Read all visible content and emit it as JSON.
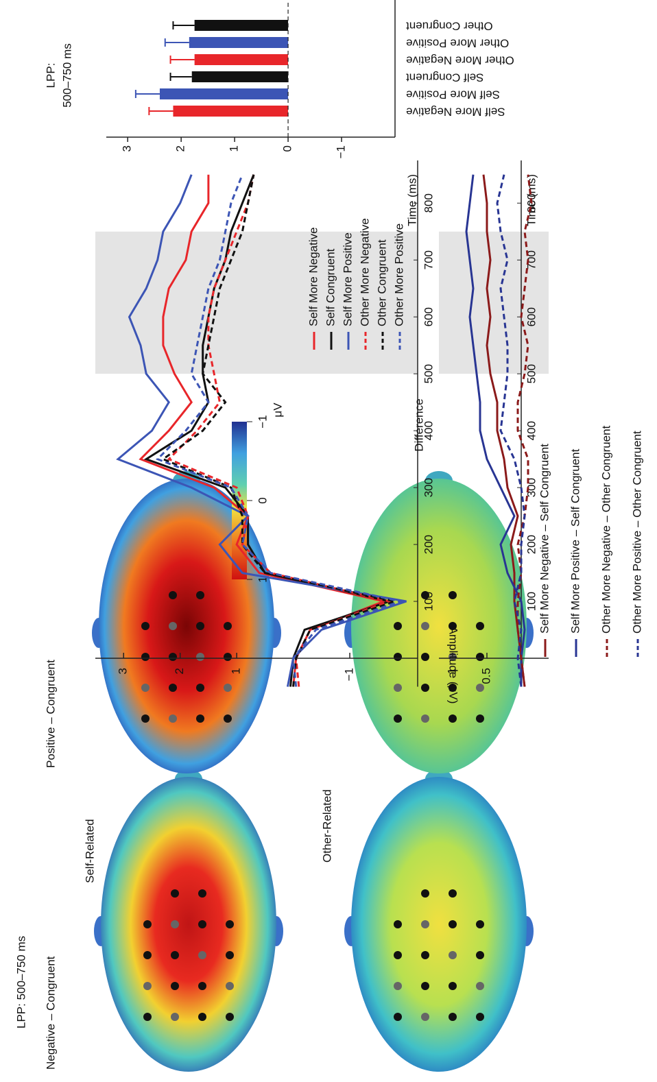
{
  "topomaps": {
    "title": "LPP: 500–750 ms",
    "columns": [
      "Negative – Congruent",
      "Positive – Congruent"
    ],
    "rows": [
      "Self-Related",
      "Other-Related"
    ],
    "colorbar": {
      "lim": [
        -1,
        1
      ],
      "ticks": [
        1,
        0,
        {
          "value": -1,
          "label": "−1"
        }
      ],
      "unit": "μV"
    }
  },
  "chart_data": [
    {
      "type": "line",
      "y_label": "Amplitude (μV)",
      "x_label": "Time (ms)",
      "x": [
        -50,
        0,
        50,
        100,
        150,
        200,
        250,
        300,
        350,
        400,
        450,
        500,
        550,
        600,
        650,
        700,
        750,
        800,
        850
      ],
      "xlim": [
        -50,
        875
      ],
      "xticks": [
        100,
        200,
        300,
        400,
        500,
        600,
        700,
        800
      ],
      "ylim": [
        -2.2,
        3.5
      ],
      "yticks": [
        {
          "value": -1,
          "label": "−1"
        },
        1,
        2,
        3
      ],
      "highlight": [
        500,
        750
      ],
      "legend": "lower right",
      "series": [
        {
          "name": "Self More Negative",
          "color": "#e8262a",
          "values": [
            0.0,
            -0.05,
            -0.3,
            -1.6,
            0.6,
            1.0,
            0.8,
            1.4,
            2.7,
            2.2,
            1.8,
            2.1,
            2.3,
            2.3,
            2.2,
            1.9,
            1.8,
            1.5,
            1.5
          ]
        },
        {
          "name": "Self Congruent",
          "color": "#111111",
          "values": [
            0.05,
            0.0,
            -0.2,
            -1.7,
            0.5,
            0.8,
            0.8,
            1.2,
            2.6,
            1.8,
            1.5,
            1.6,
            1.6,
            1.5,
            1.4,
            1.2,
            1.1,
            0.9,
            0.7
          ]
        },
        {
          "name": "Self More Positive",
          "color": "#3c55b5",
          "values": [
            0.1,
            0,
            -0.5,
            -2.0,
            0.9,
            1.3,
            0.8,
            1.8,
            3.1,
            2.5,
            2.2,
            2.6,
            2.7,
            2.9,
            2.6,
            2.4,
            2.3,
            2.0,
            1.8
          ]
        },
        {
          "name": "Other More Negative",
          "color": "#e8262a",
          "style": "dashed",
          "values": [
            -0.1,
            -0.05,
            -0.3,
            -1.7,
            0.4,
            0.9,
            0.8,
            1.0,
            2.2,
            1.7,
            1.3,
            1.4,
            1.5,
            1.5,
            1.4,
            1.2,
            1.0,
            0.8,
            0.7
          ]
        },
        {
          "name": "Other Congruent",
          "color": "#111111",
          "style": "dashed",
          "values": [
            0.0,
            -0.05,
            -0.3,
            -1.8,
            0.5,
            0.9,
            0.9,
            1.1,
            2.3,
            1.6,
            1.2,
            1.6,
            1.5,
            1.4,
            1.3,
            1.1,
            0.9,
            0.8,
            0.7
          ]
        },
        {
          "name": "Other More Positive",
          "color": "#3c55b5",
          "style": "dashed",
          "values": [
            -0.05,
            0.0,
            -0.4,
            -1.9,
            0.4,
            0.9,
            0.8,
            1.1,
            2.4,
            1.9,
            1.5,
            1.8,
            1.7,
            1.6,
            1.5,
            1.3,
            1.2,
            1.1,
            0.9
          ]
        }
      ]
    },
    {
      "type": "line",
      "title": "Difference",
      "x_label": "Time (ms)",
      "x": [
        -50,
        0,
        50,
        100,
        150,
        200,
        250,
        300,
        350,
        400,
        450,
        500,
        550,
        600,
        650,
        700,
        750,
        800,
        850
      ],
      "xlim": [
        -50,
        875
      ],
      "xticks": [
        100,
        200,
        300,
        400,
        500,
        600,
        700,
        800
      ],
      "ylim": [
        -0.4,
        1.2
      ],
      "yticks": [
        0.5,
        1
      ],
      "highlight": [
        500,
        750
      ],
      "legend": "below",
      "series": [
        {
          "name": "Self More Negative – Self Congruent",
          "color": "#8b1a1a",
          "values": [
            -0.05,
            0.0,
            0.05,
            0.1,
            0.1,
            0.15,
            0.05,
            0.2,
            0.25,
            0.35,
            0.35,
            0.45,
            0.5,
            0.45,
            0.5,
            0.45,
            0.5,
            0.5,
            0.55
          ]
        },
        {
          "name": "Self More Positive – Self Congruent",
          "color": "#283593",
          "values": [
            0.0,
            0.0,
            -0.05,
            0.0,
            0.2,
            0.3,
            0.1,
            0.3,
            0.5,
            0.6,
            0.6,
            0.65,
            0.7,
            0.75,
            0.7,
            0.75,
            0.8,
            0.75,
            0.7
          ]
        },
        {
          "name": "Other More Negative – Other Congruent",
          "color": "#8b1a1a",
          "style": "dashed",
          "values": [
            -0.05,
            0.0,
            0.05,
            0.05,
            0.0,
            0.05,
            -0.05,
            -0.1,
            -0.1,
            0.05,
            0.05,
            -0.05,
            -0.1,
            0.0,
            -0.05,
            -0.1,
            -0.05,
            -0.15,
            -0.1
          ]
        },
        {
          "name": "Other More Positive – Other Congruent",
          "color": "#283593",
          "style": "dashed",
          "values": [
            0.0,
            0.05,
            0.0,
            0.1,
            0.0,
            0.0,
            -0.05,
            0.0,
            0.1,
            0.3,
            0.25,
            0.2,
            0.2,
            0.25,
            0.3,
            0.2,
            0.3,
            0.35,
            0.25
          ]
        }
      ]
    },
    {
      "type": "bar",
      "title": [
        "LPP:",
        "500–750 ms"
      ],
      "categories": [
        "Self More Negative",
        "Self More Positive",
        "Self Congruent",
        "Other More Negative",
        "Other More Positive",
        "Other Congruent"
      ],
      "values": [
        2.15,
        2.4,
        1.8,
        1.75,
        1.85,
        1.75
      ],
      "errors": [
        0.45,
        0.45,
        0.4,
        0.45,
        0.45,
        0.4
      ],
      "colors": [
        "#e8262a",
        "#3c55b5",
        "#111111",
        "#e8262a",
        "#3c55b5",
        "#111111"
      ],
      "ylim": [
        -2,
        3.4
      ],
      "yticks": [
        {
          "value": -1,
          "label": "−1"
        },
        0,
        1,
        2,
        3
      ]
    }
  ]
}
